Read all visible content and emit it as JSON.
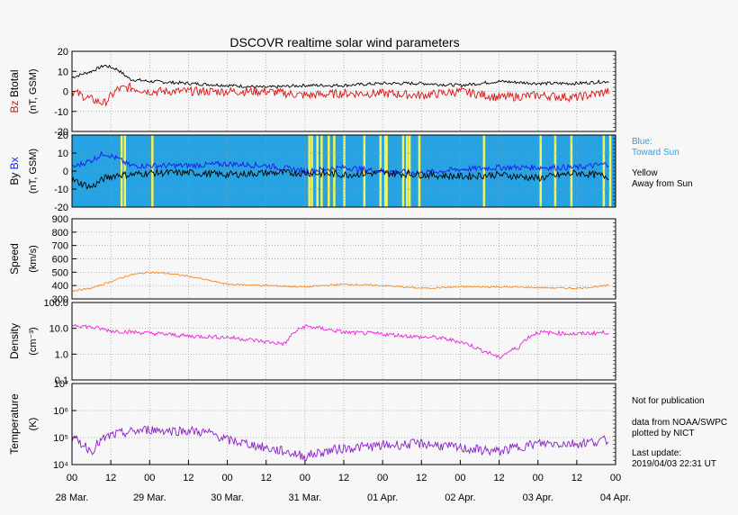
{
  "title": "DSCOVR realtime solar wind parameters",
  "x_axis": {
    "hour_labels": [
      "00",
      "12",
      "00",
      "12",
      "00",
      "12",
      "00",
      "12",
      "00",
      "12",
      "00",
      "12",
      "00",
      "12",
      "00"
    ],
    "date_labels": [
      "28 Mar.",
      "29 Mar.",
      "30 Mar.",
      "31 Mar.",
      "01 Apr.",
      "02 Apr.",
      "03 Apr.",
      "04 Apr."
    ],
    "range_hours": [
      0,
      168
    ]
  },
  "panels": [
    {
      "id": "btotal",
      "ylabels": [
        {
          "text": "Bz",
          "color": "#e01010"
        },
        {
          "text": "Btotal",
          "color": "#000000"
        }
      ],
      "unit": "(nT, GSM)",
      "ticks": [
        "20",
        "10",
        "0",
        "-10",
        "-20"
      ]
    },
    {
      "id": "bx",
      "ylabels": [
        {
          "text": "By",
          "color": "#000000"
        },
        {
          "text": "Bx",
          "color": "#1a1aee"
        }
      ],
      "unit": "(nT, GSM)",
      "ticks": [
        "20",
        "10",
        "0",
        "-10",
        "-20"
      ]
    },
    {
      "id": "speed",
      "ylabels": [
        {
          "text": "Speed",
          "color": "#000000"
        }
      ],
      "unit": "(km/s)",
      "ticks": [
        "900",
        "800",
        "700",
        "600",
        "500",
        "400",
        "300"
      ]
    },
    {
      "id": "density",
      "ylabels": [
        {
          "text": "Density",
          "color": "#000000"
        }
      ],
      "unit": "(cm⁻³)",
      "ticks": [
        "100.0",
        "10.0",
        "1.0",
        "0.1"
      ]
    },
    {
      "id": "temperature",
      "ylabels": [
        {
          "text": "Temperature",
          "color": "#000000"
        }
      ],
      "unit": "(K)",
      "ticks": [
        "10⁷",
        "10⁶",
        "10⁵",
        "10⁴"
      ]
    }
  ],
  "legend": {
    "blue_label": "Blue:",
    "blue_text": "Toward Sun",
    "yellow_label": "Yellow",
    "yellow_text": "Away from Sun"
  },
  "footnote": {
    "line1": "Not for publication",
    "line2": "data from NOAA/SWPC",
    "line3": "plotted by NICT",
    "line4": "Last update:",
    "line5": "2019/04/03 22:31 UT"
  },
  "colors": {
    "bz": "#e01010",
    "btotal": "#000000",
    "bx": "#1a1aee",
    "by": "#000000",
    "toward": "#27a3e3",
    "away": "#f2f25a",
    "speed": "#f08a28",
    "density": "#ee22dd",
    "temperature": "#8a1fc8"
  },
  "chart_data": {
    "type": "line",
    "x_unit": "hours since 28 Mar. 00 UT",
    "series": [
      {
        "panel": "btotal",
        "name": "Btotal",
        "x": [
          0,
          6,
          10,
          14,
          18,
          24,
          36,
          48,
          60,
          72,
          84,
          96,
          108,
          120,
          132,
          144,
          156,
          166
        ],
        "y": [
          7,
          10,
          13,
          11,
          6,
          5,
          4,
          3,
          2,
          3,
          3,
          4,
          4,
          3,
          5,
          4,
          4,
          5
        ]
      },
      {
        "panel": "btotal",
        "name": "Bz",
        "x": [
          0,
          6,
          10,
          14,
          18,
          24,
          36,
          48,
          60,
          72,
          84,
          96,
          108,
          120,
          132,
          144,
          156,
          166
        ],
        "y": [
          0,
          -4,
          -6,
          1,
          2,
          0,
          0,
          0,
          0,
          -2,
          -1,
          -1,
          -2,
          0,
          -3,
          -2,
          -3,
          0
        ]
      },
      {
        "panel": "bx",
        "name": "Bx",
        "x": [
          0,
          6,
          10,
          14,
          18,
          24,
          36,
          48,
          60,
          72,
          84,
          96,
          108,
          120,
          132,
          144,
          156,
          166
        ],
        "y": [
          2,
          6,
          10,
          7,
          3,
          3,
          3,
          4,
          3,
          0,
          2,
          0,
          -1,
          1,
          2,
          2,
          2,
          4
        ]
      },
      {
        "panel": "bx",
        "name": "By",
        "x": [
          0,
          6,
          10,
          14,
          18,
          24,
          36,
          48,
          60,
          72,
          84,
          96,
          108,
          120,
          132,
          144,
          156,
          166
        ],
        "y": [
          -5,
          -9,
          -4,
          -2,
          -2,
          -1,
          -1,
          -2,
          -1,
          -1,
          -2,
          -1,
          -2,
          -3,
          -2,
          -4,
          -1,
          -3
        ]
      },
      {
        "panel": "speed",
        "name": "Speed",
        "x": [
          0,
          6,
          12,
          18,
          24,
          30,
          36,
          48,
          60,
          72,
          84,
          96,
          108,
          120,
          132,
          144,
          156,
          166
        ],
        "y": [
          360,
          380,
          430,
          480,
          500,
          490,
          470,
          410,
          400,
          390,
          410,
          400,
          380,
          390,
          390,
          385,
          380,
          400
        ]
      },
      {
        "panel": "density",
        "name": "Density",
        "x": [
          0,
          6,
          12,
          24,
          36,
          48,
          60,
          66,
          72,
          84,
          96,
          108,
          112,
          120,
          126,
          132,
          138,
          144,
          156,
          166
        ],
        "y": [
          14,
          11,
          8,
          6.5,
          5,
          4.5,
          3,
          2.5,
          12,
          7,
          6,
          4.5,
          4.5,
          3,
          1.5,
          0.7,
          1.8,
          7,
          6,
          7
        ]
      },
      {
        "panel": "temperature",
        "name": "Temperature",
        "x": [
          0,
          6,
          12,
          18,
          24,
          30,
          36,
          42,
          48,
          60,
          72,
          84,
          96,
          108,
          120,
          132,
          144,
          156,
          166
        ],
        "y": [
          90000,
          30000,
          120000,
          160000,
          200000,
          180000,
          180000,
          150000,
          80000,
          40000,
          20000,
          40000,
          50000,
          60000,
          40000,
          30000,
          60000,
          60000,
          80000
        ]
      }
    ],
    "imf_sectors": {
      "default": "toward",
      "away_hours": [
        15,
        16,
        24.5,
        73,
        73.8,
        75.5,
        76.8,
        79,
        80.7,
        83.8,
        90,
        95,
        96.5,
        96.9,
        102,
        103.2,
        104,
        107,
        127,
        144.5,
        149,
        154,
        164,
        166
      ]
    },
    "y_ranges": {
      "btotal": [
        -20,
        20
      ],
      "bx": [
        -20,
        20
      ],
      "speed": [
        300,
        900
      ],
      "density": [
        0.1,
        100
      ],
      "temperature": [
        10000,
        10000000
      ]
    },
    "y_scale": {
      "density": "log",
      "temperature": "log"
    },
    "grid": true
  }
}
